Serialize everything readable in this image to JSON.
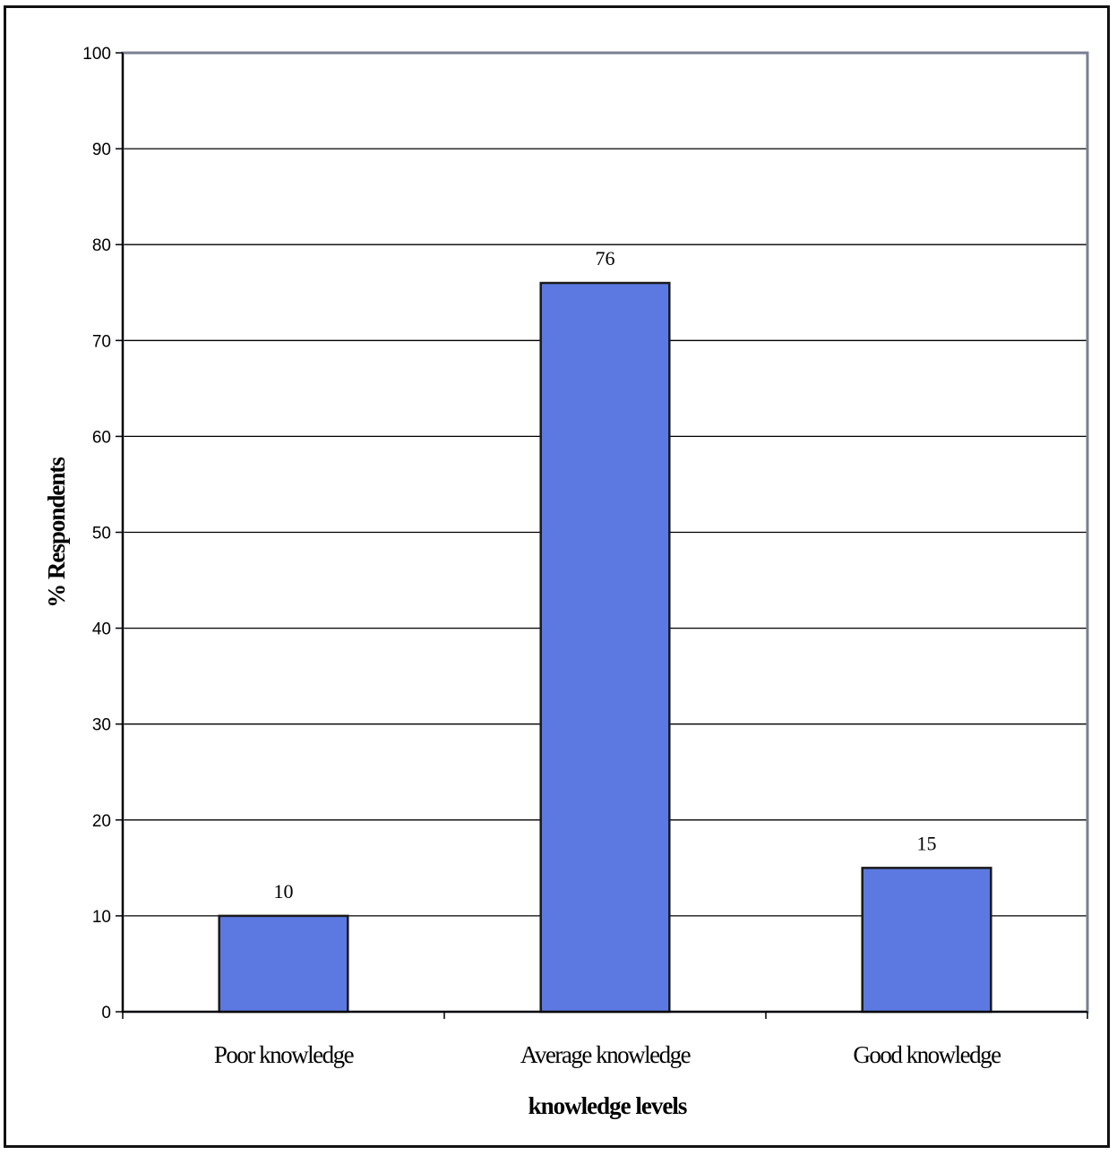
{
  "chart_data": {
    "type": "bar",
    "categories": [
      "Poor knowledge",
      "Average knowledge",
      "Good knowledge"
    ],
    "values": [
      10,
      76,
      15
    ],
    "data_labels": [
      "10",
      "76",
      "15"
    ],
    "xlabel": "knowledge levels",
    "ylabel": "% Respondents",
    "ylim": [
      0,
      100
    ],
    "yticks": [
      0,
      10,
      20,
      30,
      40,
      50,
      60,
      70,
      80,
      90,
      100
    ],
    "ytick_labels": [
      "0",
      "10",
      "20",
      "30",
      "40",
      "50",
      "60",
      "70",
      "80",
      "90",
      "100"
    ],
    "grid": true,
    "legend": "none",
    "bar_color": "#5b79e0",
    "bar_edge_color": "#1a1a1a",
    "plot_border_color": "#7a7f92"
  }
}
